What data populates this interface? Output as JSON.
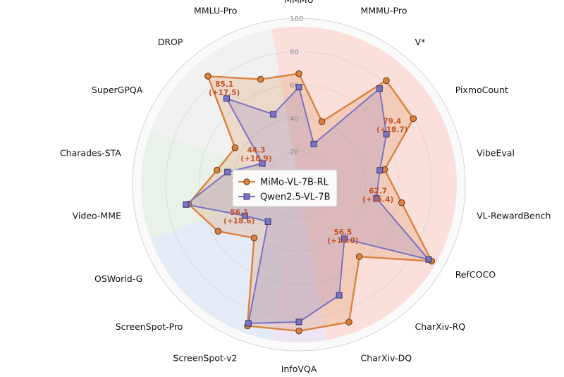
{
  "chart_data": {
    "type": "radar",
    "title": "",
    "r_range": [
      0,
      100
    ],
    "r_ticks": [
      "20",
      "40",
      "60",
      "80",
      "100"
    ],
    "axes": [
      "MMMU",
      "MMMU-Pro",
      "V*",
      "PixmoCount",
      "VibeEval",
      "VL-RewardBench",
      "RefCOCO",
      "CharXiv-RQ",
      "CharXiv-DQ",
      "InfoVQA",
      "ScreenSpot-v2",
      "ScreenSpot-Pro",
      "OSWorld-G",
      "Video-MME",
      "Charades-STA",
      "SuperGPQA",
      "DROP",
      "MMLU-Pro"
    ],
    "series": [
      {
        "name": "MiMo-VL-7B-RL",
        "color": "#d9823f",
        "marker": "circle",
        "values": [
          66.7,
          40.3,
          81.7,
          79.4,
          52.3,
          62.7,
          92.1,
          56.5,
          88.0,
          88.0,
          90.4,
          41.9,
          56.1,
          67.4,
          50.0,
          44.3,
          85.1,
          67.4
        ]
      },
      {
        "name": "Qwen2.5-VL-7B",
        "color": "#7b73c4",
        "marker": "square",
        "values": [
          58.6,
          26.0,
          75.4,
          60.7,
          49.4,
          47.3,
          90.0,
          42.5,
          70.8,
          82.6,
          88.8,
          29.0,
          37.5,
          68.9,
          43.6,
          25.4,
          67.6,
          45.0
        ]
      }
    ],
    "annotations": [
      {
        "axis": "DROP",
        "value": "85.1",
        "delta": "(+17.5)"
      },
      {
        "axis": "PixmoCount",
        "value": "79.4",
        "delta": "(+18.7)"
      },
      {
        "axis": "SuperGPQA",
        "value": "44.3",
        "delta": "(+18.9)"
      },
      {
        "axis": "VL-RewardBench",
        "value": "62.7",
        "delta": "(+15.4)"
      },
      {
        "axis": "OSWorld-G",
        "value": "56.1",
        "delta": "(+18.6)"
      },
      {
        "axis": "CharXiv-RQ",
        "value": "56.5",
        "delta": "(+14.0)"
      }
    ],
    "legend_position": "center",
    "background_sectors": [
      {
        "from": "MMMU",
        "to": "CharXiv-DQ",
        "color": "#f9d5d0"
      },
      {
        "from": "InfoVQA",
        "to": "InfoVQA",
        "color": "#e8ddf0"
      },
      {
        "from": "ScreenSpot-v2",
        "to": "OSWorld-G",
        "color": "#dde6f4"
      },
      {
        "from": "Video-MME",
        "to": "Charades-STA",
        "color": "#e2efe2"
      },
      {
        "from": "SuperGPQA",
        "to": "MMLU-Pro",
        "color": "#eeeeee"
      }
    ]
  }
}
